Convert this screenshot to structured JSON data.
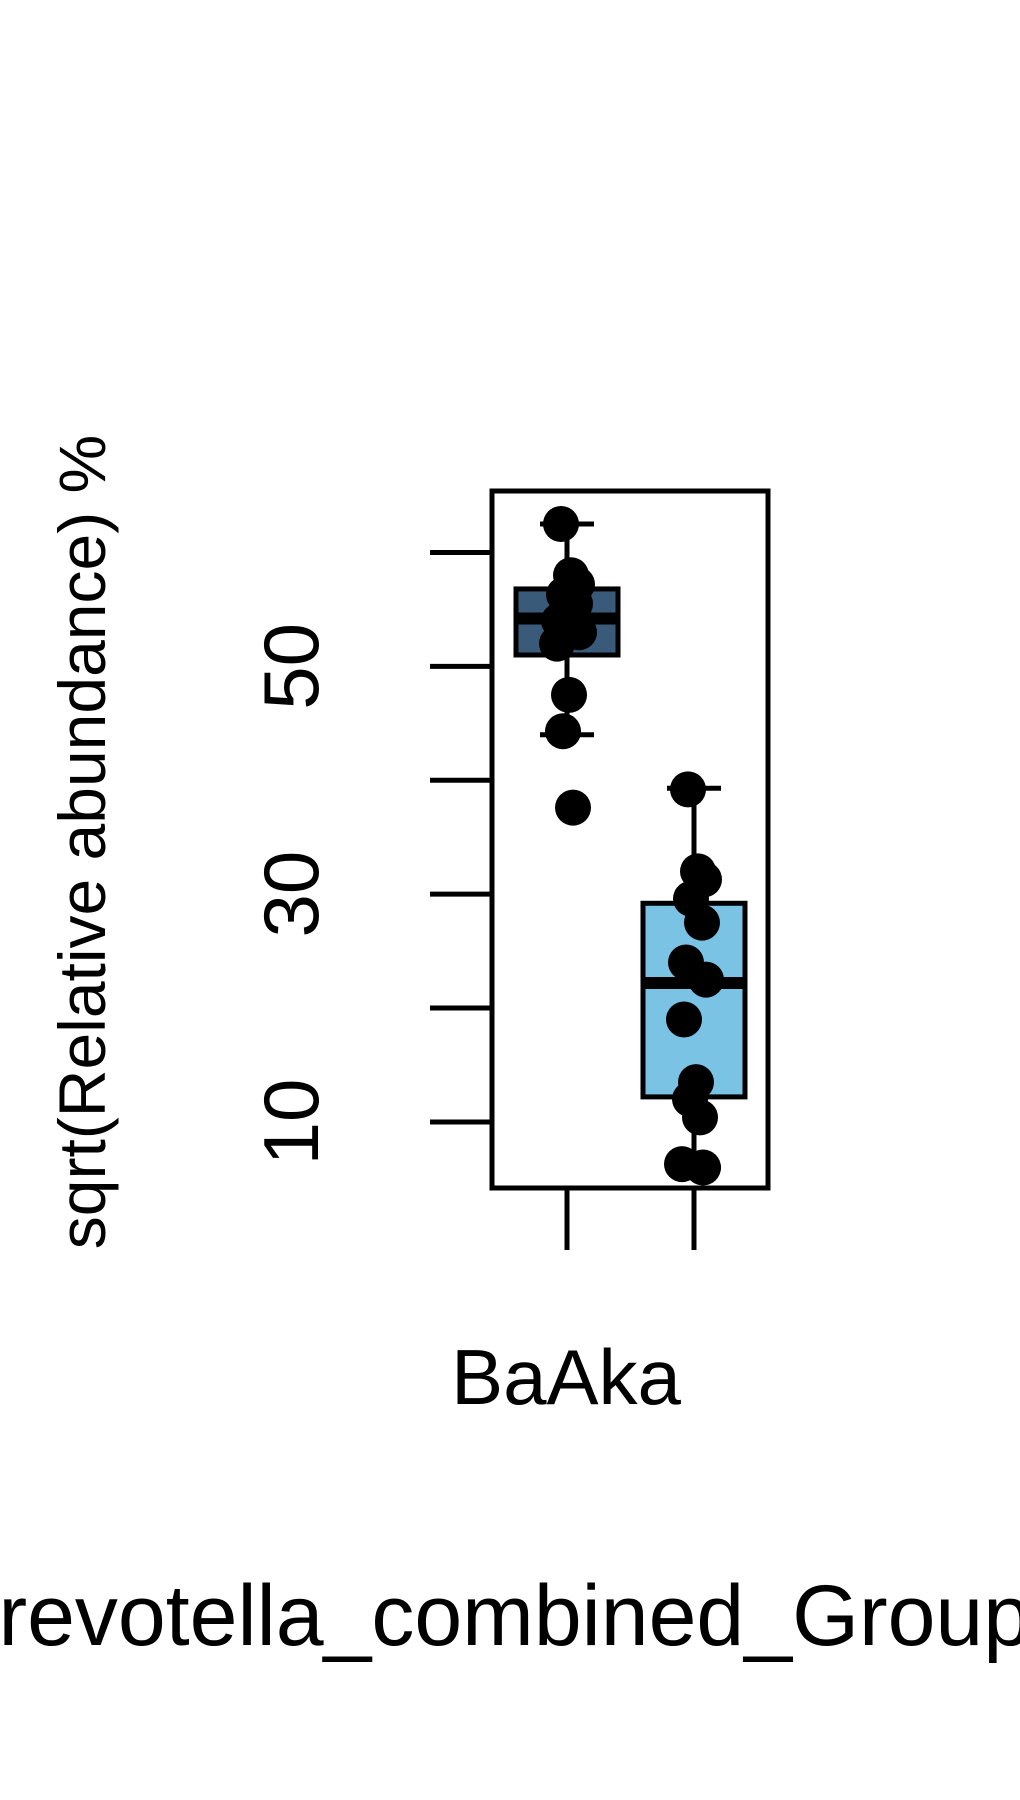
{
  "chart_data": {
    "type": "box",
    "title": "",
    "ylabel": "sqrt(Relative abundance) %",
    "xlabel": "Prevotella_combined_Group$",
    "category_label": "BaAka",
    "ylim": [
      4.2,
      65.4
    ],
    "yticks": [
      10,
      20,
      30,
      40,
      50,
      60
    ],
    "ytick_labels": [
      "10",
      "30",
      "50"
    ],
    "grid": false,
    "legend": "none",
    "series": [
      {
        "color": "#3a5a7a",
        "whisker_low": 44.0,
        "q1": 51.0,
        "median": 54.2,
        "q3": 56.8,
        "whisker_high": 62.5,
        "points": [
          62.5,
          58.0,
          57.2,
          56.3,
          55.5,
          54.0,
          53.0,
          52.0,
          47.5,
          44.3,
          37.6
        ]
      },
      {
        "color": "#7ac3e5",
        "whisker_low": 6.0,
        "q1": 12.2,
        "median": 22.2,
        "q3": 29.2,
        "whisker_high": 39.3,
        "points": [
          39.2,
          32.0,
          31.3,
          29.6,
          27.5,
          24.0,
          22.5,
          19.0,
          13.5,
          12.0,
          10.4,
          6.3,
          6.0
        ]
      }
    ]
  }
}
